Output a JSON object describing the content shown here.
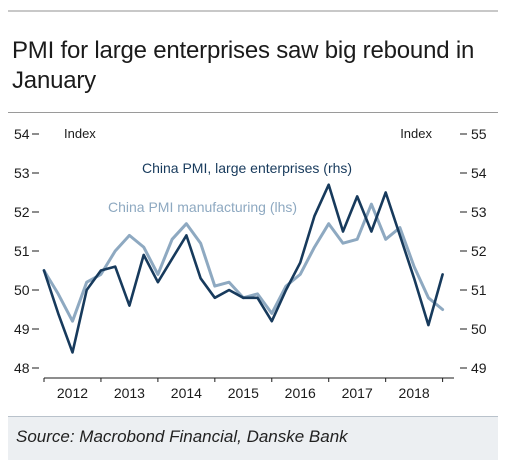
{
  "title": "PMI for large enterprises saw big rebound in January",
  "source": "Source: Macrobond Financial, Danske Bank",
  "colors": {
    "manufacturing": "#8ea9c1",
    "large": "#173a5c",
    "axis": "#1b1b1b"
  },
  "chart_data": {
    "type": "line",
    "title": "PMI for large enterprises saw big rebound in January",
    "left_axis_label": "Index",
    "right_axis_label": "Index",
    "left_ylim": [
      48,
      54
    ],
    "right_ylim": [
      49,
      55
    ],
    "left_ticks": [
      "48",
      "49",
      "50",
      "51",
      "52",
      "53",
      "54"
    ],
    "right_ticks": [
      "49",
      "50",
      "51",
      "52",
      "53",
      "54",
      "55"
    ],
    "x_tick_labels": [
      "2012",
      "2013",
      "2014",
      "2015",
      "2016",
      "2017",
      "2018"
    ],
    "x_range": [
      2012.0,
      2019.2
    ],
    "grid": false,
    "legend": "inline labels",
    "series": [
      {
        "name": "China PMI manufacturing (lhs)",
        "axis": "left",
        "x": [
          2012.0,
          2012.25,
          2012.5,
          2012.75,
          2013.0,
          2013.25,
          2013.5,
          2013.75,
          2014.0,
          2014.25,
          2014.5,
          2014.75,
          2015.0,
          2015.25,
          2015.5,
          2015.75,
          2016.0,
          2016.25,
          2016.5,
          2016.75,
          2017.0,
          2017.25,
          2017.5,
          2017.75,
          2018.0,
          2018.25,
          2018.5,
          2018.75,
          2019.0
        ],
        "values": [
          50.5,
          49.9,
          49.2,
          50.2,
          50.4,
          51.0,
          51.4,
          51.1,
          50.4,
          51.3,
          51.7,
          51.2,
          50.1,
          50.2,
          49.8,
          49.9,
          49.4,
          50.1,
          50.4,
          51.1,
          51.7,
          51.2,
          51.3,
          52.2,
          51.3,
          51.6,
          50.6,
          49.8,
          49.5
        ]
      },
      {
        "name": "China PMI, large enterprises (rhs)",
        "axis": "right",
        "x": [
          2012.0,
          2012.25,
          2012.5,
          2012.75,
          2013.0,
          2013.25,
          2013.5,
          2013.75,
          2014.0,
          2014.25,
          2014.5,
          2014.75,
          2015.0,
          2015.25,
          2015.5,
          2015.75,
          2016.0,
          2016.25,
          2016.5,
          2016.75,
          2017.0,
          2017.25,
          2017.5,
          2017.75,
          2018.0,
          2018.25,
          2018.5,
          2018.75,
          2019.0
        ],
        "values": [
          51.5,
          50.4,
          49.4,
          51.0,
          51.5,
          51.6,
          50.6,
          51.9,
          51.2,
          51.8,
          52.4,
          51.3,
          50.8,
          51.0,
          50.8,
          50.8,
          50.2,
          51.0,
          51.7,
          52.9,
          53.7,
          52.5,
          53.4,
          52.5,
          53.5,
          52.4,
          51.3,
          50.1,
          51.4
        ]
      }
    ]
  }
}
